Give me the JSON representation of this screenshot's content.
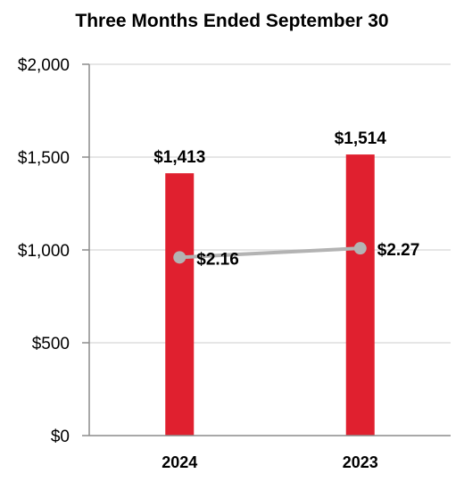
{
  "chart_data": {
    "type": "bar",
    "title": "Three Months Ended September 30",
    "categories": [
      "2024",
      "2023"
    ],
    "values": [
      1413,
      1514
    ],
    "value_labels": [
      "$1,413",
      "$1,514"
    ],
    "bar_color": "#e0202f",
    "ylim": [
      0,
      2000
    ],
    "yticks": [
      0,
      500,
      1000,
      1500,
      2000
    ],
    "ytick_labels": [
      "$0",
      "$500",
      "$1,000",
      "$1,500",
      "$2,000"
    ],
    "grid": true,
    "line_series": {
      "values": [
        2.16,
        2.27
      ],
      "value_labels": [
        "$2.16",
        "$2.27"
      ],
      "color": "#b3b3b3",
      "ylim": [
        0,
        4.5
      ]
    }
  }
}
